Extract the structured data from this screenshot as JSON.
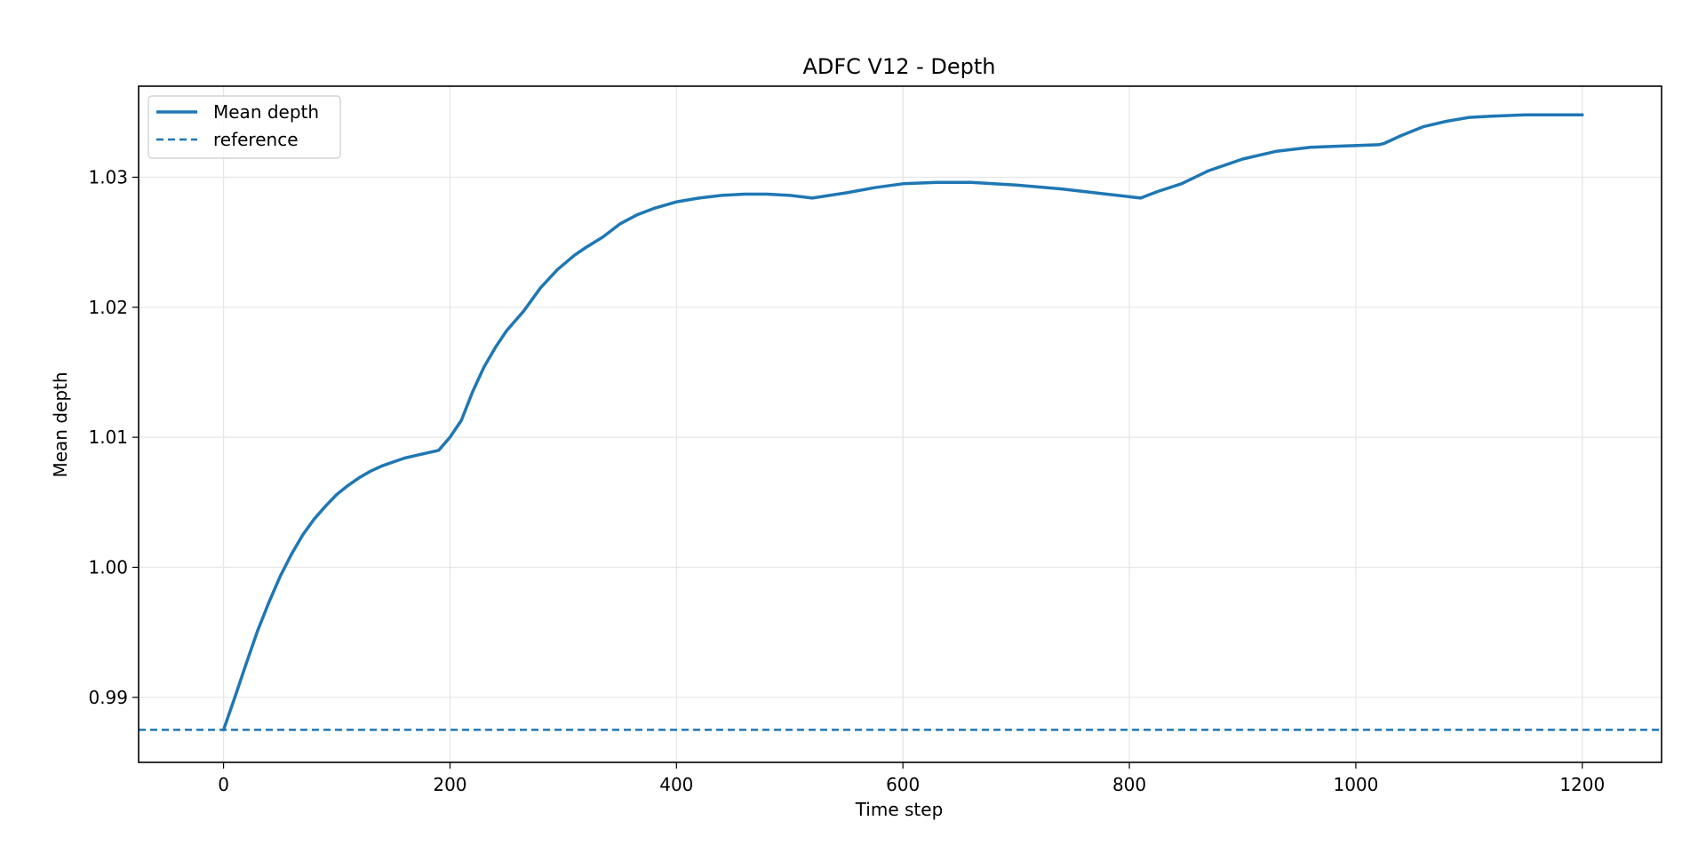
{
  "chart_data": {
    "type": "line",
    "title": "ADFC V12 - Depth",
    "xlabel": "Time step",
    "ylabel": "Mean depth",
    "xlim": [
      -75,
      1270
    ],
    "ylim": [
      0.985,
      1.037
    ],
    "x_ticks": [
      0,
      200,
      400,
      600,
      800,
      1000,
      1200
    ],
    "y_ticks": [
      0.99,
      1.0,
      1.01,
      1.02,
      1.03
    ],
    "x_tick_labels": [
      "0",
      "200",
      "400",
      "600",
      "800",
      "1000",
      "1200"
    ],
    "y_tick_labels": [
      "0.99",
      "1.00",
      "1.01",
      "1.02",
      "1.03"
    ],
    "grid": true,
    "legend_position": "top-left",
    "legend": [
      "Mean depth",
      "reference"
    ],
    "series": [
      {
        "name": "Mean depth",
        "style": "solid",
        "color": "#1f77b4",
        "x": [
          0,
          10,
          20,
          30,
          40,
          50,
          60,
          70,
          80,
          90,
          100,
          110,
          120,
          130,
          140,
          150,
          160,
          170,
          180,
          190,
          200,
          210,
          220,
          230,
          240,
          250,
          265,
          280,
          295,
          310,
          320,
          335,
          350,
          365,
          380,
          400,
          420,
          440,
          460,
          480,
          500,
          520,
          550,
          575,
          600,
          630,
          660,
          700,
          740,
          780,
          810,
          825,
          846,
          870,
          900,
          930,
          960,
          990,
          1020,
          1025,
          1040,
          1060,
          1080,
          1100,
          1120,
          1150,
          1180,
          1200
        ],
        "y": [
          0.9875,
          0.99,
          0.9926,
          0.9951,
          0.9973,
          0.9993,
          1.001,
          1.0025,
          1.0037,
          1.0047,
          1.0056,
          1.0063,
          1.0069,
          1.0074,
          1.0078,
          1.0081,
          1.0084,
          1.0086,
          1.0088,
          1.009,
          1.01,
          1.0113,
          1.0135,
          1.0154,
          1.0169,
          1.0182,
          1.0197,
          1.0215,
          1.0229,
          1.024,
          1.0246,
          1.0254,
          1.0264,
          1.0271,
          1.0276,
          1.0281,
          1.0284,
          1.0286,
          1.0287,
          1.0287,
          1.0286,
          1.0284,
          1.0288,
          1.0292,
          1.0295,
          1.0296,
          1.0296,
          1.0294,
          1.0291,
          1.0287,
          1.0284,
          1.0289,
          1.0295,
          1.0305,
          1.0314,
          1.032,
          1.0323,
          1.0324,
          1.0325,
          1.0326,
          1.0332,
          1.0339,
          1.0343,
          1.0346,
          1.0347,
          1.0348,
          1.0348,
          1.0348
        ]
      },
      {
        "name": "reference",
        "style": "dashed",
        "color": "#1f77b4",
        "constant_y": 0.9875
      }
    ]
  }
}
